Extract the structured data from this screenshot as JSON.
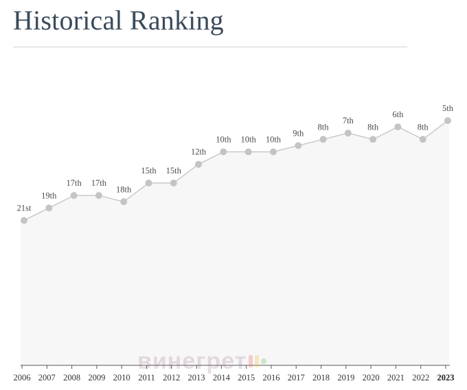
{
  "header": {
    "title": "Historical Ranking"
  },
  "watermark": {
    "text": "винегрет"
  },
  "colors": {
    "line": "#c8c8c8",
    "point": "#c4c4c4",
    "area": "#f7f7f7",
    "axis": "#555555",
    "title": "#3a4a5a"
  },
  "chart_data": {
    "type": "area",
    "title": "Historical Ranking",
    "xlabel": "",
    "ylabel": "",
    "y_inverted": true,
    "ylim": [
      100,
      0
    ],
    "grid": false,
    "legend": "none",
    "categories": [
      "2006",
      "2007",
      "2008",
      "2009",
      "2010",
      "2011",
      "2012",
      "2013",
      "2014",
      "2015",
      "2016",
      "2017",
      "2018",
      "2019",
      "2020",
      "2021",
      "2022",
      "2023"
    ],
    "highlight_category": "2023",
    "series": [
      {
        "values": [
          21,
          19,
          17,
          17,
          18,
          15,
          15,
          12,
          10,
          10,
          10,
          9,
          8,
          7,
          8,
          6,
          8,
          5
        ],
        "labels": [
          "21st",
          "19th",
          "17th",
          "17th",
          "18th",
          "15th",
          "15th",
          "12th",
          "10th",
          "10th",
          "10th",
          "9th",
          "8th",
          "7th",
          "8th",
          "6th",
          "8th",
          "5th"
        ]
      }
    ]
  }
}
